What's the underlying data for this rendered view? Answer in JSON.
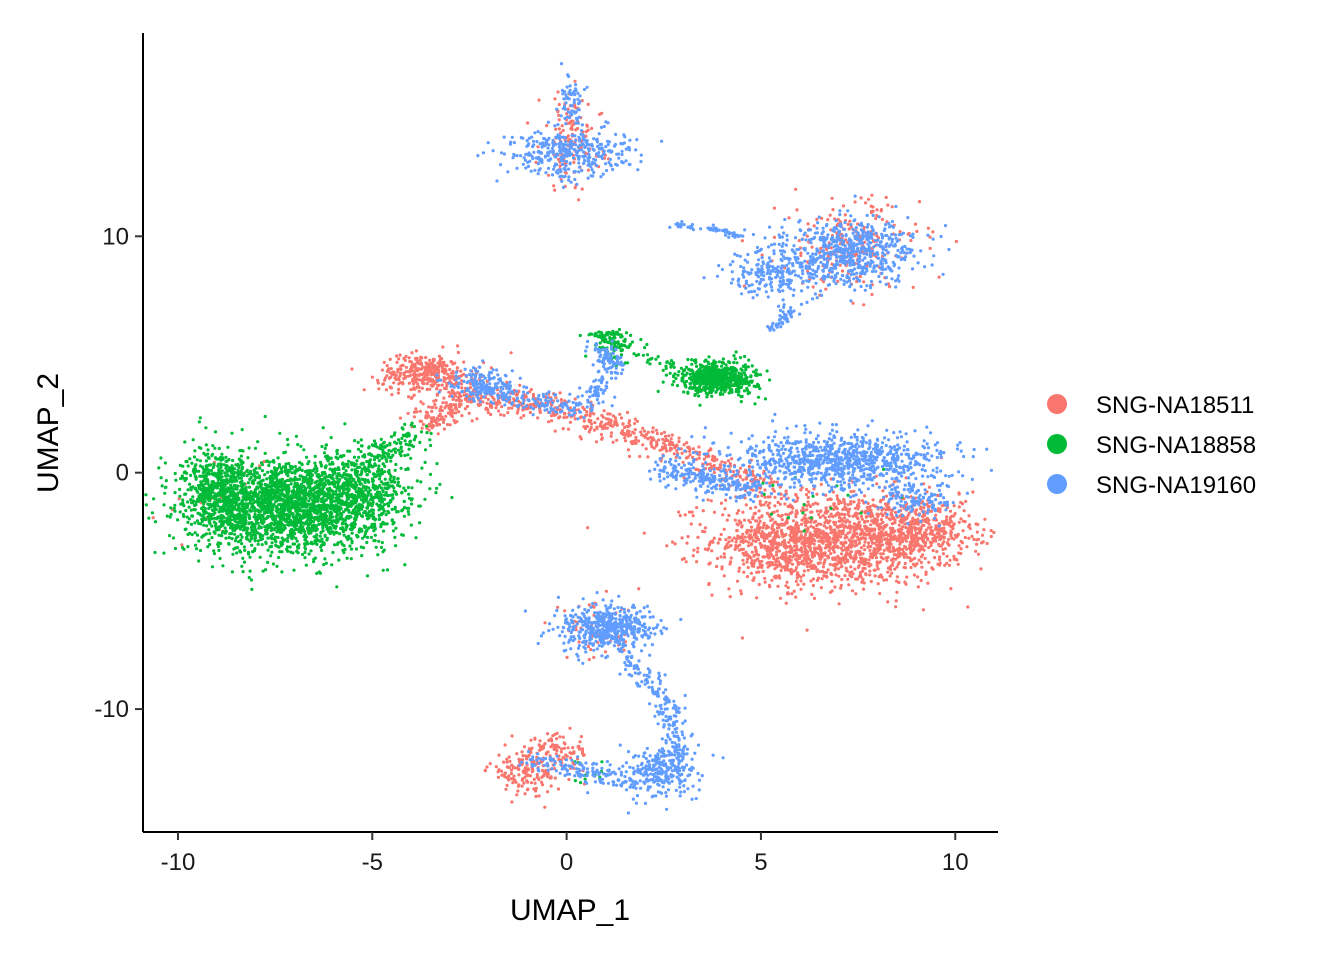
{
  "chart_data": {
    "type": "scatter",
    "title": "",
    "xlabel": "UMAP_1",
    "ylabel": "UMAP_2",
    "xlim": [
      -10.9,
      11.1
    ],
    "ylim": [
      -15.2,
      18.6
    ],
    "x_ticks": [
      -10,
      -5,
      0,
      5,
      10
    ],
    "y_ticks": [
      -10,
      0,
      10
    ],
    "x_tick_labels": [
      "-10",
      "-5",
      "0",
      "5",
      "10"
    ],
    "y_tick_labels": [
      "-10",
      "0",
      "10"
    ],
    "grid": false,
    "legend_position": "right",
    "series": [
      {
        "name": "SNG-NA18511",
        "color": "#F8766D",
        "clusters": [
          {
            "cx": 7.0,
            "cy": -2.8,
            "sx": 1.6,
            "sy": 1.0,
            "n": 1500
          },
          {
            "cx": 9.2,
            "cy": -2.4,
            "sx": 0.6,
            "sy": 0.6,
            "n": 250
          },
          {
            "cx": 5.6,
            "cy": -3.2,
            "sx": 0.6,
            "sy": 0.8,
            "n": 250
          },
          {
            "cx": -3.6,
            "cy": 4.2,
            "sx": 0.6,
            "sy": 0.4,
            "n": 350
          },
          {
            "cx": 7.3,
            "cy": 9.6,
            "sx": 0.9,
            "sy": 1.0,
            "n": 220
          },
          {
            "cx": 0.1,
            "cy": 14.0,
            "sx": 0.4,
            "sy": 1.0,
            "n": 130
          },
          {
            "cx": -1.0,
            "cy": -12.6,
            "sx": 0.5,
            "sy": 0.5,
            "n": 160
          },
          {
            "cx": -0.2,
            "cy": -11.8,
            "sx": 0.4,
            "sy": 0.4,
            "n": 80
          },
          {
            "cx": 0.8,
            "cy": -6.8,
            "sx": 0.6,
            "sy": 0.6,
            "n": 50
          },
          {
            "cx": -9.0,
            "cy": -1.0,
            "sx": 0.8,
            "sy": 0.9,
            "n": 25
          }
        ],
        "paths": [
          {
            "points": [
              [
                -3.8,
                2.0
              ],
              [
                -2.4,
                3.3
              ],
              [
                -0.6,
                2.9
              ],
              [
                1.5,
                1.8
              ],
              [
                3.5,
                0.6
              ],
              [
                5.5,
                -1.0
              ]
            ],
            "n": 700,
            "spread": 0.28
          }
        ]
      },
      {
        "name": "SNG-NA18858",
        "color": "#00BA38",
        "clusters": [
          {
            "cx": -7.2,
            "cy": -1.4,
            "sx": 1.3,
            "sy": 1.0,
            "n": 2300
          },
          {
            "cx": -8.9,
            "cy": -0.7,
            "sx": 0.45,
            "sy": 0.9,
            "n": 400
          },
          {
            "cx": -5.2,
            "cy": -0.6,
            "sx": 0.6,
            "sy": 0.9,
            "n": 400
          },
          {
            "cx": 3.9,
            "cy": 4.0,
            "sx": 0.5,
            "sy": 0.35,
            "n": 600
          },
          {
            "cx": 1.3,
            "cy": 5.4,
            "sx": 0.25,
            "sy": 0.3,
            "n": 90
          },
          {
            "cx": 0.9,
            "cy": 5.8,
            "sx": 0.2,
            "sy": 0.1,
            "n": 30
          },
          {
            "cx": 6.5,
            "cy": -1.0,
            "sx": 1.2,
            "sy": 1.0,
            "n": 20
          },
          {
            "cx": 0.6,
            "cy": -12.8,
            "sx": 0.3,
            "sy": 0.3,
            "n": 12
          }
        ],
        "paths": [
          {
            "points": [
              [
                -5.0,
                0.6
              ],
              [
                -3.8,
                1.8
              ]
            ],
            "n": 90,
            "spread": 0.25
          },
          {
            "points": [
              [
                1.8,
                5.0
              ],
              [
                2.7,
                4.5
              ]
            ],
            "n": 25,
            "spread": 0.1
          }
        ]
      },
      {
        "name": "SNG-NA19160",
        "color": "#619CFF",
        "clusters": [
          {
            "cx": 7.0,
            "cy": 0.5,
            "sx": 1.4,
            "sy": 0.6,
            "n": 900
          },
          {
            "cx": 9.0,
            "cy": -1.2,
            "sx": 0.5,
            "sy": 0.4,
            "n": 120
          },
          {
            "cx": 7.2,
            "cy": 9.3,
            "sx": 0.9,
            "sy": 0.7,
            "n": 600
          },
          {
            "cx": 5.3,
            "cy": 8.3,
            "sx": 0.7,
            "sy": 0.5,
            "n": 200
          },
          {
            "cx": 0.1,
            "cy": 13.5,
            "sx": 0.8,
            "sy": 0.5,
            "n": 350
          },
          {
            "cx": 0.1,
            "cy": 15.6,
            "sx": 0.15,
            "sy": 0.8,
            "n": 70
          },
          {
            "cx": 1.0,
            "cy": -6.6,
            "sx": 0.6,
            "sy": 0.5,
            "n": 500
          },
          {
            "cx": 2.5,
            "cy": -12.6,
            "sx": 0.5,
            "sy": 0.6,
            "n": 200
          },
          {
            "cx": -2.1,
            "cy": 3.7,
            "sx": 0.5,
            "sy": 0.35,
            "n": 150
          }
        ],
        "paths": [
          {
            "points": [
              [
                -2.5,
                3.6
              ],
              [
                -1.0,
                2.9
              ],
              [
                0.5,
                2.8
              ],
              [
                1.2,
                4.5
              ],
              [
                0.8,
                5.4
              ]
            ],
            "n": 280,
            "spread": 0.2
          },
          {
            "points": [
              [
                1.5,
                -7.8
              ],
              [
                2.6,
                -9.6
              ],
              [
                2.9,
                -11.8
              ],
              [
                1.8,
                -13.2
              ],
              [
                0.5,
                -12.6
              ],
              [
                -1.0,
                -12.2
              ]
            ],
            "n": 380,
            "spread": 0.2
          },
          {
            "points": [
              [
                2.7,
                10.5
              ],
              [
                3.8,
                10.3
              ],
              [
                4.5,
                10.0
              ]
            ],
            "n": 55,
            "spread": 0.06
          },
          {
            "points": [
              [
                5.8,
                7.0
              ],
              [
                5.3,
                6.0
              ]
            ],
            "n": 45,
            "spread": 0.12
          },
          {
            "points": [
              [
                2.5,
                0.2
              ],
              [
                4.8,
                -0.8
              ]
            ],
            "n": 220,
            "spread": 0.3
          }
        ]
      }
    ]
  }
}
